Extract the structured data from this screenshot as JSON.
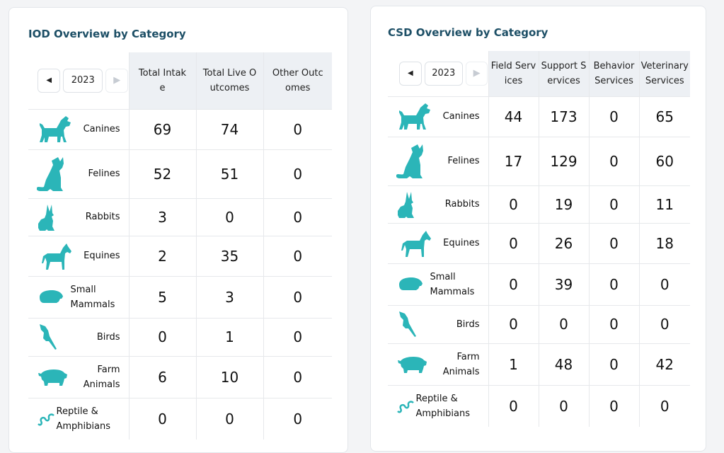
{
  "iod": {
    "title": "IOD Overview by Category",
    "year": "2023",
    "prev_icon": "chevron-left-icon",
    "next_icon": "chevron-right-icon",
    "headers": [
      "Total Intake",
      "Total Live Outcomes",
      "Other Outcomes"
    ],
    "rows": [
      {
        "label": "Canines",
        "icon": "dog-icon",
        "values": [
          "69",
          "74",
          "0"
        ]
      },
      {
        "label": "Felines",
        "icon": "cat-icon",
        "values": [
          "52",
          "51",
          "0"
        ]
      },
      {
        "label": "Rabbits",
        "icon": "rabbit-icon",
        "values": [
          "3",
          "0",
          "0"
        ]
      },
      {
        "label": "Equines",
        "icon": "horse-icon",
        "values": [
          "2",
          "35",
          "0"
        ]
      },
      {
        "label": "Small Mammals",
        "icon": "guinea-pig-icon",
        "values": [
          "5",
          "3",
          "0"
        ]
      },
      {
        "label": "Birds",
        "icon": "parrot-icon",
        "values": [
          "0",
          "1",
          "0"
        ]
      },
      {
        "label": "Farm Animals",
        "icon": "pig-icon",
        "values": [
          "6",
          "10",
          "0"
        ]
      },
      {
        "label": "Reptile & Amphibians",
        "icon": "snake-icon",
        "values": [
          "0",
          "0",
          "0"
        ]
      }
    ]
  },
  "csd": {
    "title": "CSD Overview by Category",
    "year": "2023",
    "prev_icon": "chevron-left-icon",
    "next_icon": "chevron-right-icon",
    "headers": [
      "Field Services",
      "Support Services",
      "Behavior Services",
      "Veterinary Services"
    ],
    "rows": [
      {
        "label": "Canines",
        "icon": "dog-icon",
        "values": [
          "44",
          "173",
          "0",
          "65"
        ]
      },
      {
        "label": "Felines",
        "icon": "cat-icon",
        "values": [
          "17",
          "129",
          "0",
          "60"
        ]
      },
      {
        "label": "Rabbits",
        "icon": "rabbit-icon",
        "values": [
          "0",
          "19",
          "0",
          "11"
        ]
      },
      {
        "label": "Equines",
        "icon": "horse-icon",
        "values": [
          "0",
          "26",
          "0",
          "18"
        ]
      },
      {
        "label": "Small Mammals",
        "icon": "guinea-pig-icon",
        "values": [
          "0",
          "39",
          "0",
          "0"
        ]
      },
      {
        "label": "Birds",
        "icon": "parrot-icon",
        "values": [
          "0",
          "0",
          "0",
          "0"
        ]
      },
      {
        "label": "Farm Animals",
        "icon": "pig-icon",
        "values": [
          "1",
          "48",
          "0",
          "42"
        ]
      },
      {
        "label": "Reptile & Amphibians",
        "icon": "snake-icon",
        "values": [
          "0",
          "0",
          "0",
          "0"
        ]
      }
    ]
  },
  "colors": {
    "accent": "#2bb5b8",
    "title": "#1d4f66",
    "header_bg": "#edf0f4"
  }
}
